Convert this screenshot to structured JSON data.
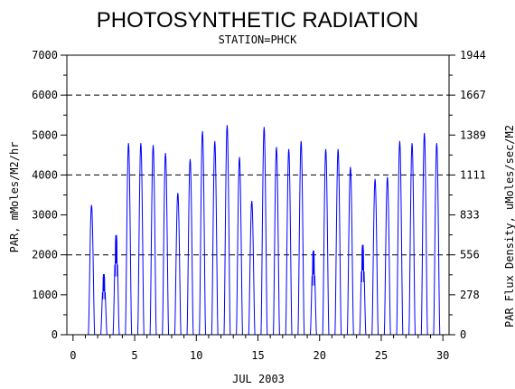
{
  "chart_data": {
    "type": "line",
    "title": "PHOTOSYNTHETIC RADIATION",
    "subtitle": "STATION=PHCK",
    "xlabel": "JUL 2003",
    "ylabel": "PAR, mMoles/M2/hr",
    "ylabel_right": "PAR Flux Density, uMoles/sec/M2",
    "xlim": [
      -0.5,
      30.5
    ],
    "ylim": [
      0,
      7000
    ],
    "x_ticks": [
      "0",
      "5",
      "10",
      "15",
      "20",
      "25",
      "30"
    ],
    "y_ticks": [
      "0",
      "1000",
      "2000",
      "3000",
      "4000",
      "5000",
      "6000",
      "7000"
    ],
    "y_ticks_right": [
      "0",
      "278",
      "556",
      "833",
      "1111",
      "1389",
      "1667",
      "1944"
    ],
    "reference_lines": [
      2000,
      4000,
      6000
    ],
    "grid": false,
    "line_color": "#0000ff",
    "series": [
      {
        "daily_peaks": [
          {
            "day": 1,
            "peak": 3250
          },
          {
            "day": 2,
            "peak": 1550
          },
          {
            "day": 3,
            "peak": 2550
          },
          {
            "day": 4,
            "peak": 4800
          },
          {
            "day": 5,
            "peak": 4800
          },
          {
            "day": 6,
            "peak": 4750
          },
          {
            "day": 7,
            "peak": 4550
          },
          {
            "day": 8,
            "peak": 3550
          },
          {
            "day": 9,
            "peak": 4400
          },
          {
            "day": 10,
            "peak": 5100
          },
          {
            "day": 11,
            "peak": 4850
          },
          {
            "day": 12,
            "peak": 5250
          },
          {
            "day": 13,
            "peak": 4450
          },
          {
            "day": 14,
            "peak": 3350
          },
          {
            "day": 15,
            "peak": 5200
          },
          {
            "day": 16,
            "peak": 4700
          },
          {
            "day": 17,
            "peak": 4650
          },
          {
            "day": 18,
            "peak": 4850
          },
          {
            "day": 19,
            "peak": 2150
          },
          {
            "day": 20,
            "peak": 4650
          },
          {
            "day": 21,
            "peak": 4650
          },
          {
            "day": 22,
            "peak": 4200
          },
          {
            "day": 23,
            "peak": 2300
          },
          {
            "day": 24,
            "peak": 3900
          },
          {
            "day": 25,
            "peak": 3950
          },
          {
            "day": 26,
            "peak": 4850
          },
          {
            "day": 27,
            "peak": 4800
          },
          {
            "day": 28,
            "peak": 5050
          },
          {
            "day": 29,
            "peak": 4800
          }
        ]
      }
    ]
  }
}
